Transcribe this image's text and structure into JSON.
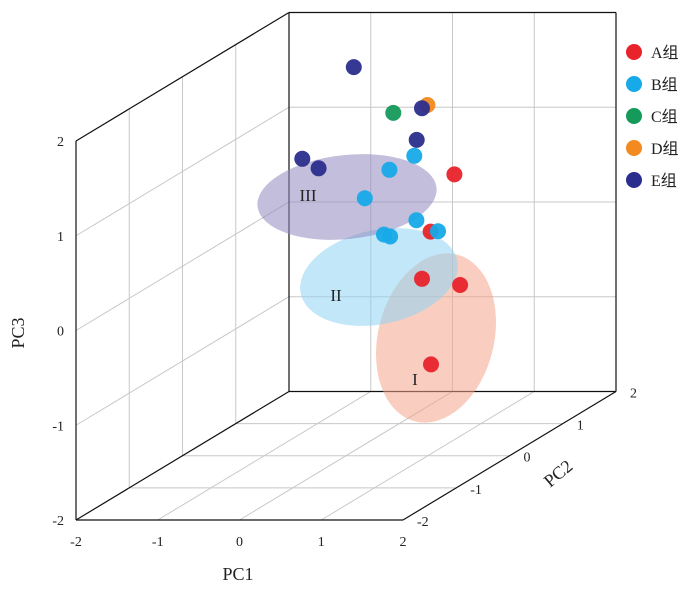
{
  "chart_data": {
    "type": "scatter",
    "dimensions": 3,
    "axes": {
      "x": {
        "label": "PC1",
        "range": [
          -2,
          2
        ],
        "ticks": [
          "-2",
          "-1",
          "0",
          "1",
          "2"
        ]
      },
      "y": {
        "label": "PC2",
        "range": [
          -2,
          2
        ],
        "ticks": [
          "-2",
          "-1",
          "0",
          "1",
          "2"
        ]
      },
      "z": {
        "label": "PC3",
        "range": [
          -2,
          2
        ],
        "ticks": [
          "-2",
          "-1",
          "0",
          "1",
          "2"
        ]
      }
    },
    "grid": true,
    "legend": {
      "placement": "top-right"
    },
    "series": [
      {
        "name": "A组",
        "color": "#e8232b",
        "points": [
          [
            0.8,
            0.2,
            -0.2
          ],
          [
            1.2,
            0.3,
            -0.3
          ],
          [
            1.1,
            -0.1,
            0.4
          ],
          [
            1.0,
            0.5,
            0.8
          ],
          [
            1.3,
            -0.4,
            -0.9
          ]
        ]
      },
      {
        "name": "B组",
        "color": "#17a9e8",
        "points": [
          [
            0.1,
            0.2,
            0.65
          ],
          [
            0.4,
            0.2,
            0.95
          ],
          [
            0.9,
            -0.1,
            1.2
          ],
          [
            0.8,
            -0.4,
            0.45
          ],
          [
            0.4,
            0.1,
            0.3
          ],
          [
            0.6,
            0.4,
            0.35
          ],
          [
            0.8,
            0.5,
            0.2
          ]
        ]
      },
      {
        "name": "C组",
        "color": "#159a5a",
        "points": [
          [
            0.35,
            0.35,
            1.5
          ]
        ]
      },
      {
        "name": "D组",
        "color": "#f28a1f",
        "points": [
          [
            0.8,
            0.3,
            1.6
          ]
        ]
      },
      {
        "name": "E组",
        "color": "#2b2e8c",
        "points": [
          [
            -0.6,
            0.1,
            1.1
          ],
          [
            -0.4,
            0.1,
            1.0
          ],
          [
            -0.1,
            0.3,
            2.0
          ],
          [
            0.8,
            0.2,
            1.6
          ],
          [
            0.8,
            0.1,
            1.3
          ]
        ]
      }
    ],
    "clusters": [
      {
        "label": "I",
        "color": "#f4a58c"
      },
      {
        "label": "II",
        "color": "#8fd3f2"
      },
      {
        "label": "III",
        "color": "#8f88c0"
      }
    ]
  }
}
